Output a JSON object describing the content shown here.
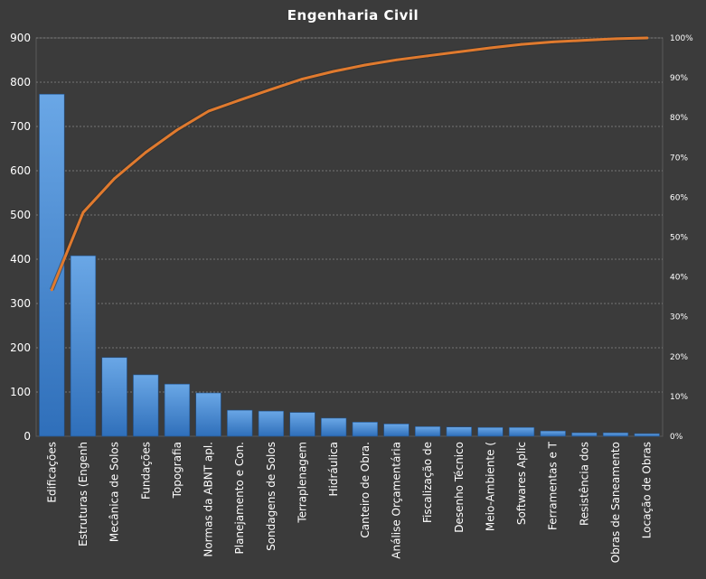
{
  "chart_data": {
    "type": "bar",
    "title": "Engenharia Civil",
    "xlabel": "",
    "ylabel": "",
    "categories": [
      "Edificações",
      "Estruturas (Engenh",
      "Mecânica de Solos",
      "Fundações",
      "Topografia",
      "Normas da ABNT apl.",
      "Planejamento e Con.",
      "Sondagens de Solos",
      "Terraplenagem",
      "Hidráulica",
      "Canteiro de Obra.",
      "Análise Orçamentária",
      "Fiscalização de",
      "Desenho Técnico",
      "Meio-Ambiente (",
      "Softwares Aplic",
      "Ferramentas e T",
      "Resistência dos",
      "Obras de Saneamento",
      "Locação de Obras"
    ],
    "series": [
      {
        "type": "bar",
        "axis": "primary",
        "values": [
          773,
          408,
          178,
          139,
          118,
          98,
          59,
          57,
          54,
          41,
          32,
          28,
          22,
          21,
          20,
          20,
          12,
          8,
          8,
          6
        ]
      },
      {
        "type": "line",
        "axis": "secondary",
        "values": [
          36.8,
          56.2,
          64.7,
          71.3,
          76.9,
          81.6,
          84.4,
          87.1,
          89.7,
          91.6,
          93.2,
          94.5,
          95.5,
          96.5,
          97.5,
          98.4,
          99.0,
          99.4,
          99.8,
          100.0
        ]
      }
    ],
    "ylim": [
      0,
      900
    ],
    "yticks": [
      "0",
      "100",
      "200",
      "300",
      "400",
      "500",
      "600",
      "700",
      "800",
      "900"
    ],
    "y2lim": [
      0,
      100
    ],
    "y2ticks": [
      "0%",
      "10%",
      "20%",
      "30%",
      "40%",
      "50%",
      "60%",
      "70%",
      "80%",
      "90%",
      "100%"
    ],
    "grid": true,
    "legend": "none",
    "colors": {
      "background": "#3b3b3b",
      "bar": "#4a90d9",
      "bar_dark": "#2f6fba",
      "bar_light": "#6aa7e6",
      "line": "#e07a2e",
      "text": "#ffffff",
      "grid": "#8a8a8a"
    }
  }
}
